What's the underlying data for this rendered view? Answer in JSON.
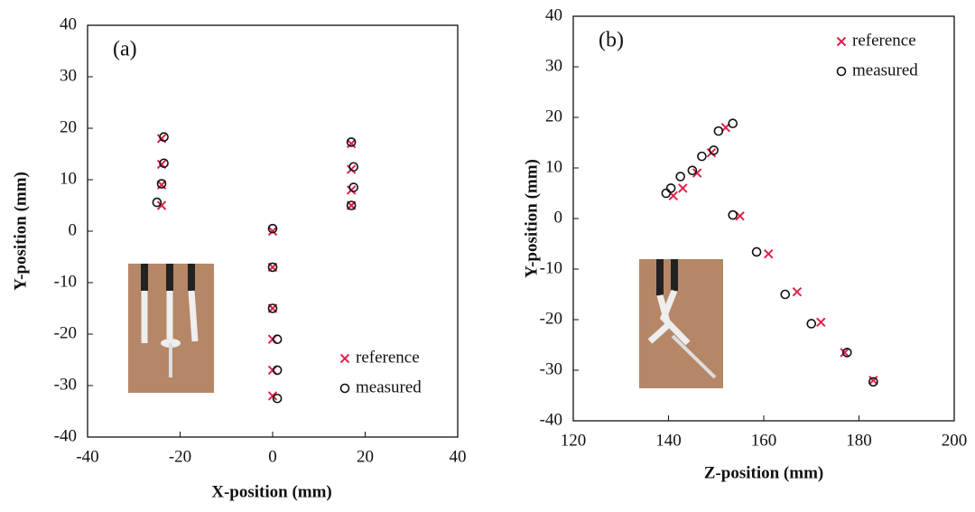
{
  "chart_data": [
    {
      "type": "scatter",
      "annotation": "(a)",
      "xlabel": "X-position (mm)",
      "ylabel": "Y-position (mm)",
      "xlim": [
        -40,
        40
      ],
      "xticks": [
        -40,
        -20,
        0,
        20,
        40
      ],
      "ylim": [
        -40,
        40
      ],
      "yticks": [
        -40,
        -30,
        -20,
        -10,
        0,
        10,
        20,
        30,
        40
      ],
      "legend": "lower right",
      "series": [
        {
          "name": "reference",
          "color": "#e0204a",
          "marker": "x",
          "x": [
            -24,
            -24,
            -24,
            -24,
            0,
            0,
            0,
            0,
            0,
            0,
            17,
            17,
            17,
            17
          ],
          "values": [
            18,
            13,
            9,
            5,
            0,
            -7,
            -15,
            -21,
            -27,
            -32,
            17,
            12,
            8,
            5
          ]
        },
        {
          "name": "measured",
          "color": "#111111",
          "marker": "o",
          "x": [
            -23.5,
            -23.5,
            -24,
            -25,
            0,
            0,
            0,
            1,
            1,
            1,
            17,
            17.5,
            17.5,
            17
          ],
          "values": [
            18.3,
            13.2,
            9.2,
            5.6,
            0.5,
            -7,
            -15,
            -21,
            -27,
            -32.5,
            17.3,
            12.5,
            8.5,
            5
          ]
        }
      ]
    },
    {
      "type": "scatter",
      "annotation": "(b)",
      "xlabel": "Z-position (mm)",
      "ylabel": "Y-position (mm)",
      "xlim": [
        120,
        200
      ],
      "xticks": [
        120,
        140,
        160,
        180,
        200
      ],
      "ylim": [
        -40,
        40
      ],
      "yticks": [
        -40,
        -30,
        -20,
        -10,
        0,
        10,
        20,
        30,
        40
      ],
      "legend": "upper right",
      "series": [
        {
          "name": "reference",
          "color": "#e0204a",
          "marker": "x",
          "x": [
            152,
            149,
            146,
            143,
            141,
            155,
            161,
            167,
            172,
            177,
            183
          ],
          "values": [
            18,
            13,
            9,
            6,
            4.5,
            0.5,
            -7,
            -14.5,
            -20.5,
            -26.5,
            -32
          ]
        },
        {
          "name": "measured",
          "color": "#111111",
          "marker": "o",
          "x": [
            153.5,
            150.5,
            149.5,
            147,
            145,
            142.5,
            140.5,
            139.5,
            153.5,
            158.5,
            164.5,
            170,
            177.5,
            183
          ],
          "values": [
            18.8,
            17.3,
            13.5,
            12.3,
            9.5,
            8.3,
            6,
            5,
            0.7,
            -6.6,
            -15,
            -20.8,
            -26.5,
            -32.3
          ]
        }
      ]
    }
  ]
}
